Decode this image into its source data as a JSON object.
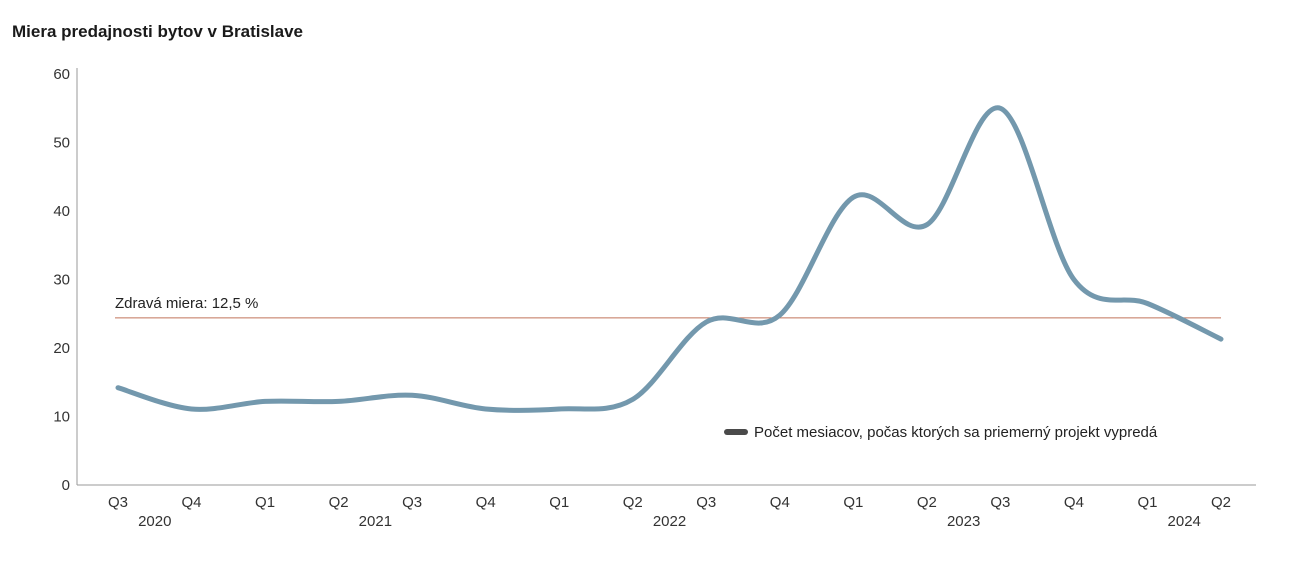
{
  "chart_data": {
    "type": "line",
    "title": "Miera predajnosti bytov v Bratislave",
    "xlabel": "",
    "ylabel": "",
    "ylim": [
      0,
      60
    ],
    "yticks": [
      0,
      10,
      20,
      30,
      40,
      50,
      60
    ],
    "categories": [
      "Q3",
      "Q4",
      "Q1",
      "Q2",
      "Q3",
      "Q4",
      "Q1",
      "Q2",
      "Q3",
      "Q4",
      "Q1",
      "Q2",
      "Q3",
      "Q4",
      "Q1",
      "Q2"
    ],
    "years": [
      {
        "label": "2020",
        "start": 0,
        "end": 1
      },
      {
        "label": "2021",
        "start": 2,
        "end": 5
      },
      {
        "label": "2022",
        "start": 6,
        "end": 9
      },
      {
        "label": "2023",
        "start": 10,
        "end": 13
      },
      {
        "label": "2024",
        "start": 14,
        "end": 15
      }
    ],
    "series": [
      {
        "name": "Počet mesiacov, počas ktorých sa priemerný projekt vypredá",
        "color": "#7398ad",
        "values": [
          14.2,
          11.1,
          12.2,
          12.2,
          13.1,
          11.1,
          11.1,
          12.5,
          23.8,
          24.8,
          42.0,
          38.0,
          55.0,
          30.0,
          26.5,
          21.3
        ]
      }
    ],
    "reference_line": {
      "label": "Zdravá miera: 12,5 %",
      "value": 24.4,
      "color": "#c0735a"
    },
    "legend_position": "bottom-right",
    "grid": false
  }
}
